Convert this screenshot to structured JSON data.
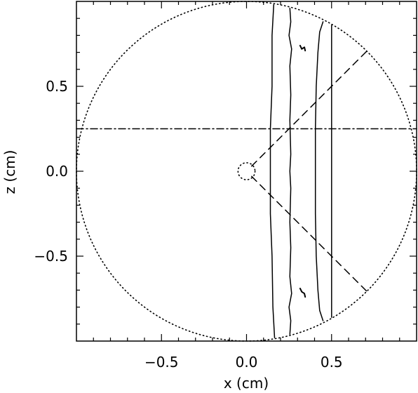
{
  "chart_data": {
    "type": "line",
    "title": "",
    "xlabel": "x (cm)",
    "ylabel": "z (cm)",
    "xlim": [
      -1.0,
      1.0
    ],
    "ylim": [
      -1.0,
      1.0
    ],
    "xticks": [
      {
        "value": -0.5,
        "label": "−0.5"
      },
      {
        "value": 0.0,
        "label": "0.0"
      },
      {
        "value": 0.5,
        "label": "0.5"
      }
    ],
    "yticks": [
      {
        "value": -0.5,
        "label": "−0.5"
      },
      {
        "value": 0.0,
        "label": "0.0"
      },
      {
        "value": 0.5,
        "label": "0.5"
      }
    ],
    "grid": false,
    "legend": "none",
    "series": [
      {
        "style": "dotted",
        "shape": "circle",
        "center": [
          0.0,
          0.0
        ],
        "radius": 1.0
      },
      {
        "style": "dotted",
        "shape": "circle",
        "center": [
          0.0,
          0.0
        ],
        "radius": 0.05
      },
      {
        "style": "dash-dot",
        "shape": "line",
        "points": [
          [
            -1.0,
            0.25
          ],
          [
            1.0,
            0.25
          ]
        ]
      },
      {
        "style": "dashed",
        "shape": "line",
        "points": [
          [
            0.03,
            0.03
          ],
          [
            0.71,
            0.71
          ]
        ]
      },
      {
        "style": "dashed",
        "shape": "line",
        "points": [
          [
            0.03,
            -0.03
          ],
          [
            0.71,
            -0.71
          ]
        ]
      },
      {
        "style": "solid",
        "shape": "contour",
        "points": [
          [
            0.16,
            0.98
          ],
          [
            0.15,
            0.8
          ],
          [
            0.15,
            0.5
          ],
          [
            0.14,
            0.25
          ],
          [
            0.14,
            0.0
          ],
          [
            0.14,
            -0.25
          ],
          [
            0.15,
            -0.5
          ],
          [
            0.155,
            -0.8
          ],
          [
            0.165,
            -0.98
          ]
        ]
      },
      {
        "style": "solid",
        "shape": "contour",
        "points": [
          [
            0.255,
            0.96
          ],
          [
            0.26,
            0.88
          ],
          [
            0.25,
            0.8
          ],
          [
            0.265,
            0.72
          ],
          [
            0.255,
            0.62
          ],
          [
            0.26,
            0.45
          ],
          [
            0.255,
            0.3
          ],
          [
            0.26,
            0.1
          ],
          [
            0.255,
            0.0
          ],
          [
            0.26,
            -0.1
          ],
          [
            0.255,
            -0.3
          ],
          [
            0.26,
            -0.45
          ],
          [
            0.255,
            -0.62
          ],
          [
            0.265,
            -0.72
          ],
          [
            0.25,
            -0.8
          ],
          [
            0.26,
            -0.88
          ],
          [
            0.255,
            -0.96
          ]
        ]
      },
      {
        "style": "solid",
        "shape": "contour",
        "points": [
          [
            0.45,
            0.88
          ],
          [
            0.43,
            0.82
          ],
          [
            0.42,
            0.7
          ],
          [
            0.41,
            0.5
          ],
          [
            0.405,
            0.25
          ],
          [
            0.405,
            0.0
          ],
          [
            0.405,
            -0.25
          ],
          [
            0.41,
            -0.5
          ],
          [
            0.42,
            -0.7
          ],
          [
            0.43,
            -0.82
          ],
          [
            0.45,
            -0.88
          ]
        ]
      },
      {
        "style": "solid",
        "shape": "contour",
        "points": [
          [
            0.5,
            0.86
          ],
          [
            0.5,
            0.5
          ],
          [
            0.5,
            0.0
          ],
          [
            0.5,
            -0.5
          ],
          [
            0.5,
            -0.86
          ]
        ]
      },
      {
        "style": "solid",
        "shape": "mark",
        "points": [
          [
            0.315,
            0.74
          ],
          [
            0.325,
            0.72
          ],
          [
            0.34,
            0.73
          ],
          [
            0.345,
            0.71
          ]
        ]
      },
      {
        "style": "solid",
        "shape": "mark",
        "points": [
          [
            0.315,
            -0.69
          ],
          [
            0.325,
            -0.71
          ],
          [
            0.34,
            -0.72
          ],
          [
            0.345,
            -0.74
          ]
        ]
      }
    ]
  }
}
